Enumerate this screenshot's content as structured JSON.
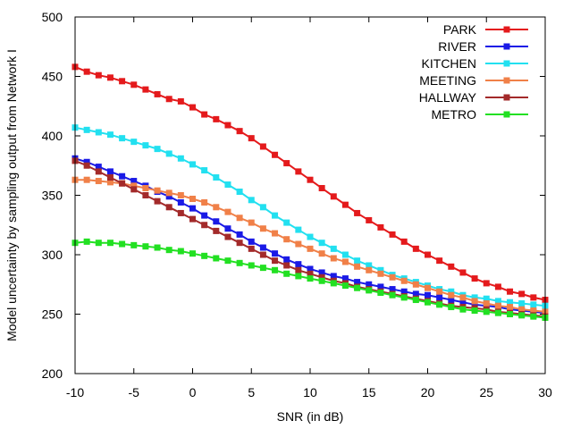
{
  "chart_data": {
    "type": "line",
    "title": "",
    "xlabel": "SNR (in dB)",
    "ylabel": "Model uncertainty by sampling output from Network I",
    "xlim": [
      -10,
      30
    ],
    "ylim": [
      200,
      500
    ],
    "xticks": [
      -10,
      -5,
      0,
      5,
      10,
      15,
      20,
      25,
      30
    ],
    "yticks": [
      200,
      250,
      300,
      350,
      400,
      450,
      500
    ],
    "xtick_labels": [
      "-10",
      "-5",
      "0",
      "5",
      "10",
      "15",
      "20",
      "25",
      "30"
    ],
    "ytick_labels": [
      "200",
      "250",
      "300",
      "350",
      "400",
      "450",
      "500"
    ],
    "grid": false,
    "legend_position": "top-right",
    "marker": "square",
    "x": [
      -10,
      -9,
      -8,
      -7,
      -6,
      -5,
      -4,
      -3,
      -2,
      -1,
      0,
      1,
      2,
      3,
      4,
      5,
      6,
      7,
      8,
      9,
      10,
      11,
      12,
      13,
      14,
      15,
      16,
      17,
      18,
      19,
      20,
      21,
      22,
      23,
      24,
      25,
      26,
      27,
      28,
      29,
      30
    ],
    "series": [
      {
        "name": "PARK",
        "color": "#e41a1c",
        "values": [
          458,
          454,
          451,
          449,
          446,
          443,
          439,
          435,
          431,
          429,
          424,
          418,
          414,
          409,
          404,
          398,
          391,
          384,
          377,
          370,
          363,
          356,
          349,
          342,
          335,
          329,
          323,
          317,
          311,
          305,
          300,
          295,
          290,
          285,
          280,
          276,
          273,
          269,
          267,
          264,
          262
        ]
      },
      {
        "name": "RIVER",
        "color": "#1a1ae6",
        "values": [
          381,
          378,
          374,
          370,
          366,
          362,
          358,
          353,
          349,
          344,
          339,
          333,
          328,
          322,
          317,
          311,
          306,
          301,
          296,
          292,
          288,
          285,
          282,
          280,
          277,
          275,
          273,
          271,
          269,
          267,
          266,
          264,
          262,
          260,
          258,
          257,
          256,
          254,
          253,
          252,
          251
        ]
      },
      {
        "name": "KITCHEN",
        "color": "#22e0f0",
        "values": [
          407,
          405,
          403,
          401,
          398,
          395,
          392,
          389,
          385,
          381,
          376,
          371,
          365,
          359,
          353,
          346,
          340,
          333,
          327,
          321,
          315,
          310,
          305,
          300,
          295,
          291,
          287,
          283,
          280,
          277,
          274,
          271,
          269,
          266,
          264,
          263,
          261,
          260,
          259,
          258,
          257
        ]
      },
      {
        "name": "MEETING",
        "color": "#f08048",
        "values": [
          363,
          363,
          362,
          361,
          360,
          358,
          356,
          354,
          352,
          350,
          347,
          344,
          340,
          336,
          331,
          327,
          322,
          318,
          313,
          309,
          305,
          301,
          297,
          294,
          290,
          287,
          284,
          281,
          278,
          275,
          272,
          269,
          266,
          264,
          261,
          259,
          257,
          256,
          254,
          253,
          252
        ]
      },
      {
        "name": "HALLWAY",
        "color": "#a32a2a",
        "values": [
          379,
          375,
          370,
          365,
          360,
          355,
          350,
          345,
          340,
          335,
          330,
          325,
          320,
          315,
          310,
          305,
          300,
          295,
          291,
          287,
          284,
          281,
          278,
          276,
          273,
          271,
          269,
          267,
          265,
          263,
          261,
          259,
          257,
          256,
          255,
          254,
          252,
          251,
          250,
          249,
          248
        ]
      },
      {
        "name": "METRO",
        "color": "#22e022",
        "values": [
          310,
          311,
          310,
          310,
          309,
          308,
          307,
          306,
          304,
          303,
          301,
          299,
          297,
          295,
          293,
          291,
          289,
          287,
          284,
          282,
          280,
          278,
          276,
          274,
          272,
          270,
          268,
          266,
          264,
          262,
          260,
          258,
          256,
          254,
          253,
          252,
          251,
          250,
          249,
          248,
          247
        ]
      }
    ]
  }
}
